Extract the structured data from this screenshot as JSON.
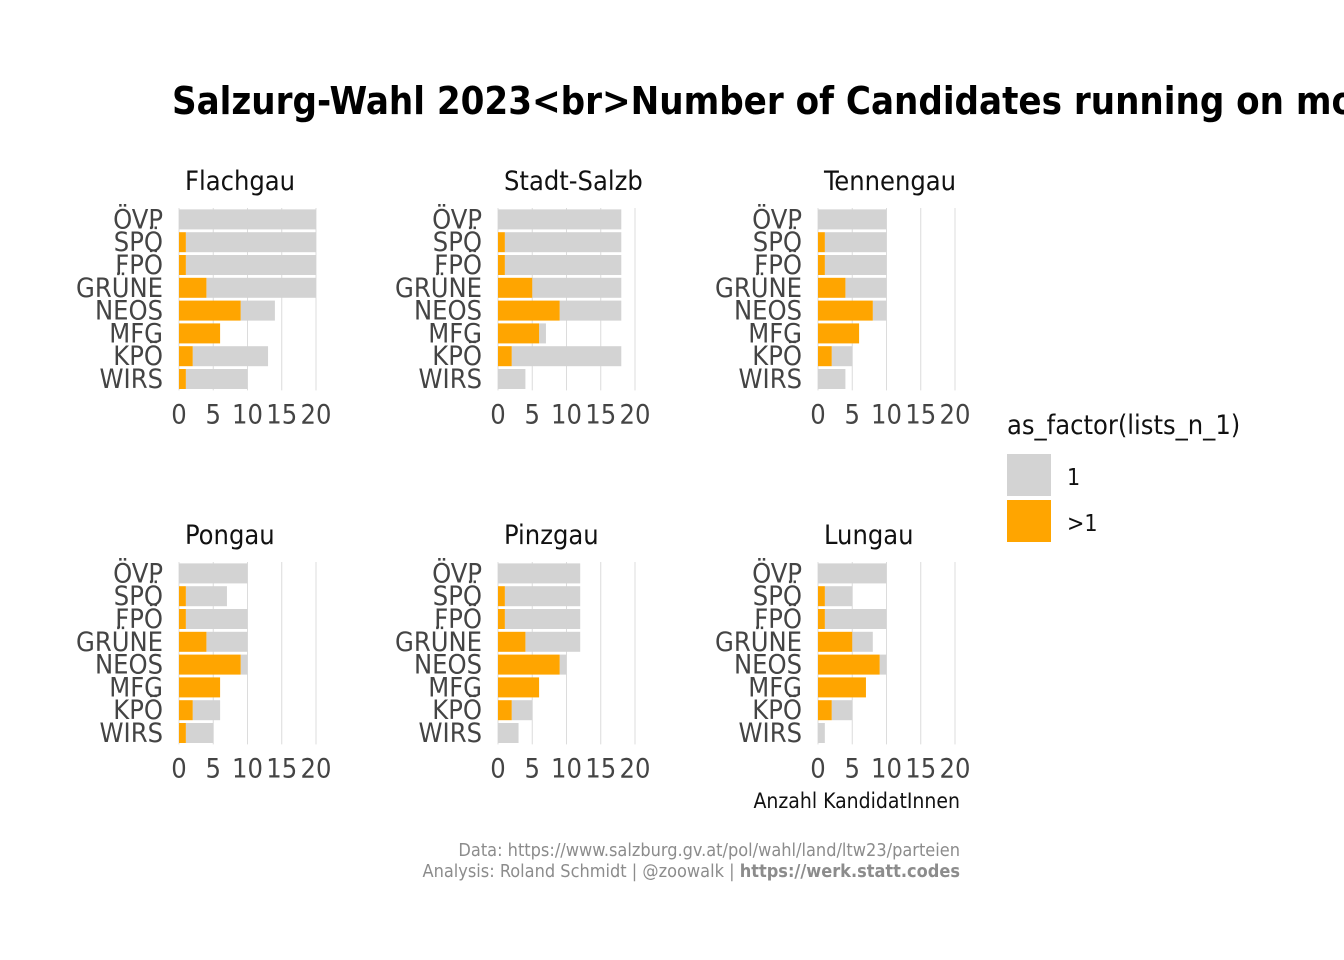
{
  "chart_data": {
    "type": "bar",
    "orientation": "horizontal",
    "title": "Salzurg-Wahl 2023<br>Number of Candidates running on mo",
    "xlabel": "Anzahl KandidatInnen",
    "ylabel": "",
    "xlim": [
      0,
      22
    ],
    "xticks": [
      "0",
      "5",
      "10",
      "15",
      "20"
    ],
    "categories": [
      "ÖVP",
      "SPÖ",
      "FPÖ",
      "GRÜNE",
      "NEOS",
      "MFG",
      "KPÖ",
      "WIRS"
    ],
    "colors": {
      "1": "#d3d3d3",
      ">1": "#ffa500"
    },
    "legend": {
      "title": "as_factor(lists_n_1)",
      "placement": "right",
      "entries": [
        {
          "key": "1",
          "label": "1",
          "color": "#d3d3d3"
        },
        {
          "key": ">1",
          "label": ">1",
          "color": "#ffa500"
        }
      ]
    },
    "facets": [
      {
        "name": "Flachgau",
        "series": [
          {
            "key": "1",
            "values": [
              20,
              19,
              19,
              16,
              5,
              0,
              11,
              9
            ]
          },
          {
            "key": ">1",
            "values": [
              0,
              1,
              1,
              4,
              9,
              6,
              2,
              1
            ]
          }
        ]
      },
      {
        "name": "Stadt-Salzb",
        "series": [
          {
            "key": "1",
            "values": [
              18,
              17,
              17,
              13,
              9,
              1,
              16,
              4
            ]
          },
          {
            "key": ">1",
            "values": [
              0,
              1,
              1,
              5,
              9,
              6,
              2,
              0
            ]
          }
        ]
      },
      {
        "name": "Tennengau",
        "series": [
          {
            "key": "1",
            "values": [
              10,
              9,
              9,
              6,
              2,
              0,
              3,
              4
            ]
          },
          {
            "key": ">1",
            "values": [
              0,
              1,
              1,
              4,
              8,
              6,
              2,
              0
            ]
          }
        ]
      },
      {
        "name": "Pongau",
        "series": [
          {
            "key": "1",
            "values": [
              10,
              6,
              9,
              6,
              1,
              0,
              4,
              4
            ]
          },
          {
            "key": ">1",
            "values": [
              0,
              1,
              1,
              4,
              9,
              6,
              2,
              1
            ]
          }
        ]
      },
      {
        "name": "Pinzgau",
        "series": [
          {
            "key": "1",
            "values": [
              12,
              11,
              11,
              8,
              1,
              0,
              3,
              3
            ]
          },
          {
            "key": ">1",
            "values": [
              0,
              1,
              1,
              4,
              9,
              6,
              2,
              0
            ]
          }
        ]
      },
      {
        "name": "Lungau",
        "series": [
          {
            "key": "1",
            "values": [
              10,
              4,
              9,
              3,
              1,
              0,
              3,
              1
            ]
          },
          {
            "key": ">1",
            "values": [
              0,
              1,
              1,
              5,
              9,
              7,
              2,
              0
            ]
          }
        ]
      }
    ]
  },
  "caption": {
    "line1": "Data: https://www.salzburg.gv.at/pol/wahl/land/ltw23/parteien",
    "line2_prefix": "Analysis: Roland Schmidt | @zoowalk | ",
    "line2_link": "https://werk.statt.codes"
  }
}
